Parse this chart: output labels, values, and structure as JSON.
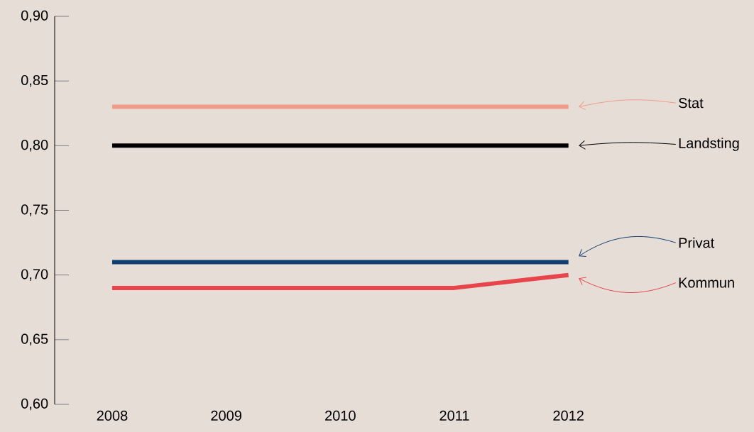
{
  "chart_data": {
    "type": "line",
    "categories": [
      "2008",
      "2009",
      "2010",
      "2011",
      "2012"
    ],
    "series": [
      {
        "name": "Stat",
        "color": "#f29b8a",
        "values": [
          0.83,
          0.83,
          0.83,
          0.83,
          0.83
        ]
      },
      {
        "name": "Landsting",
        "color": "#000000",
        "values": [
          0.8,
          0.8,
          0.8,
          0.8,
          0.8
        ]
      },
      {
        "name": "Privat",
        "color": "#0e3f70",
        "values": [
          0.71,
          0.71,
          0.71,
          0.71,
          0.71
        ]
      },
      {
        "name": "Kommun",
        "color": "#e8444c",
        "values": [
          0.69,
          0.69,
          0.69,
          0.69,
          0.7
        ]
      }
    ],
    "ylim": [
      0.6,
      0.9
    ],
    "yticks": [
      {
        "value": 0.6,
        "label": "0,60"
      },
      {
        "value": 0.65,
        "label": "0,65"
      },
      {
        "value": 0.7,
        "label": "0,70"
      },
      {
        "value": 0.75,
        "label": "0,75"
      },
      {
        "value": 0.8,
        "label": "0,80"
      },
      {
        "value": 0.85,
        "label": "0,85"
      },
      {
        "value": 0.9,
        "label": "0,90"
      }
    ],
    "grid": false,
    "marker": "none",
    "line_style": "solid"
  }
}
